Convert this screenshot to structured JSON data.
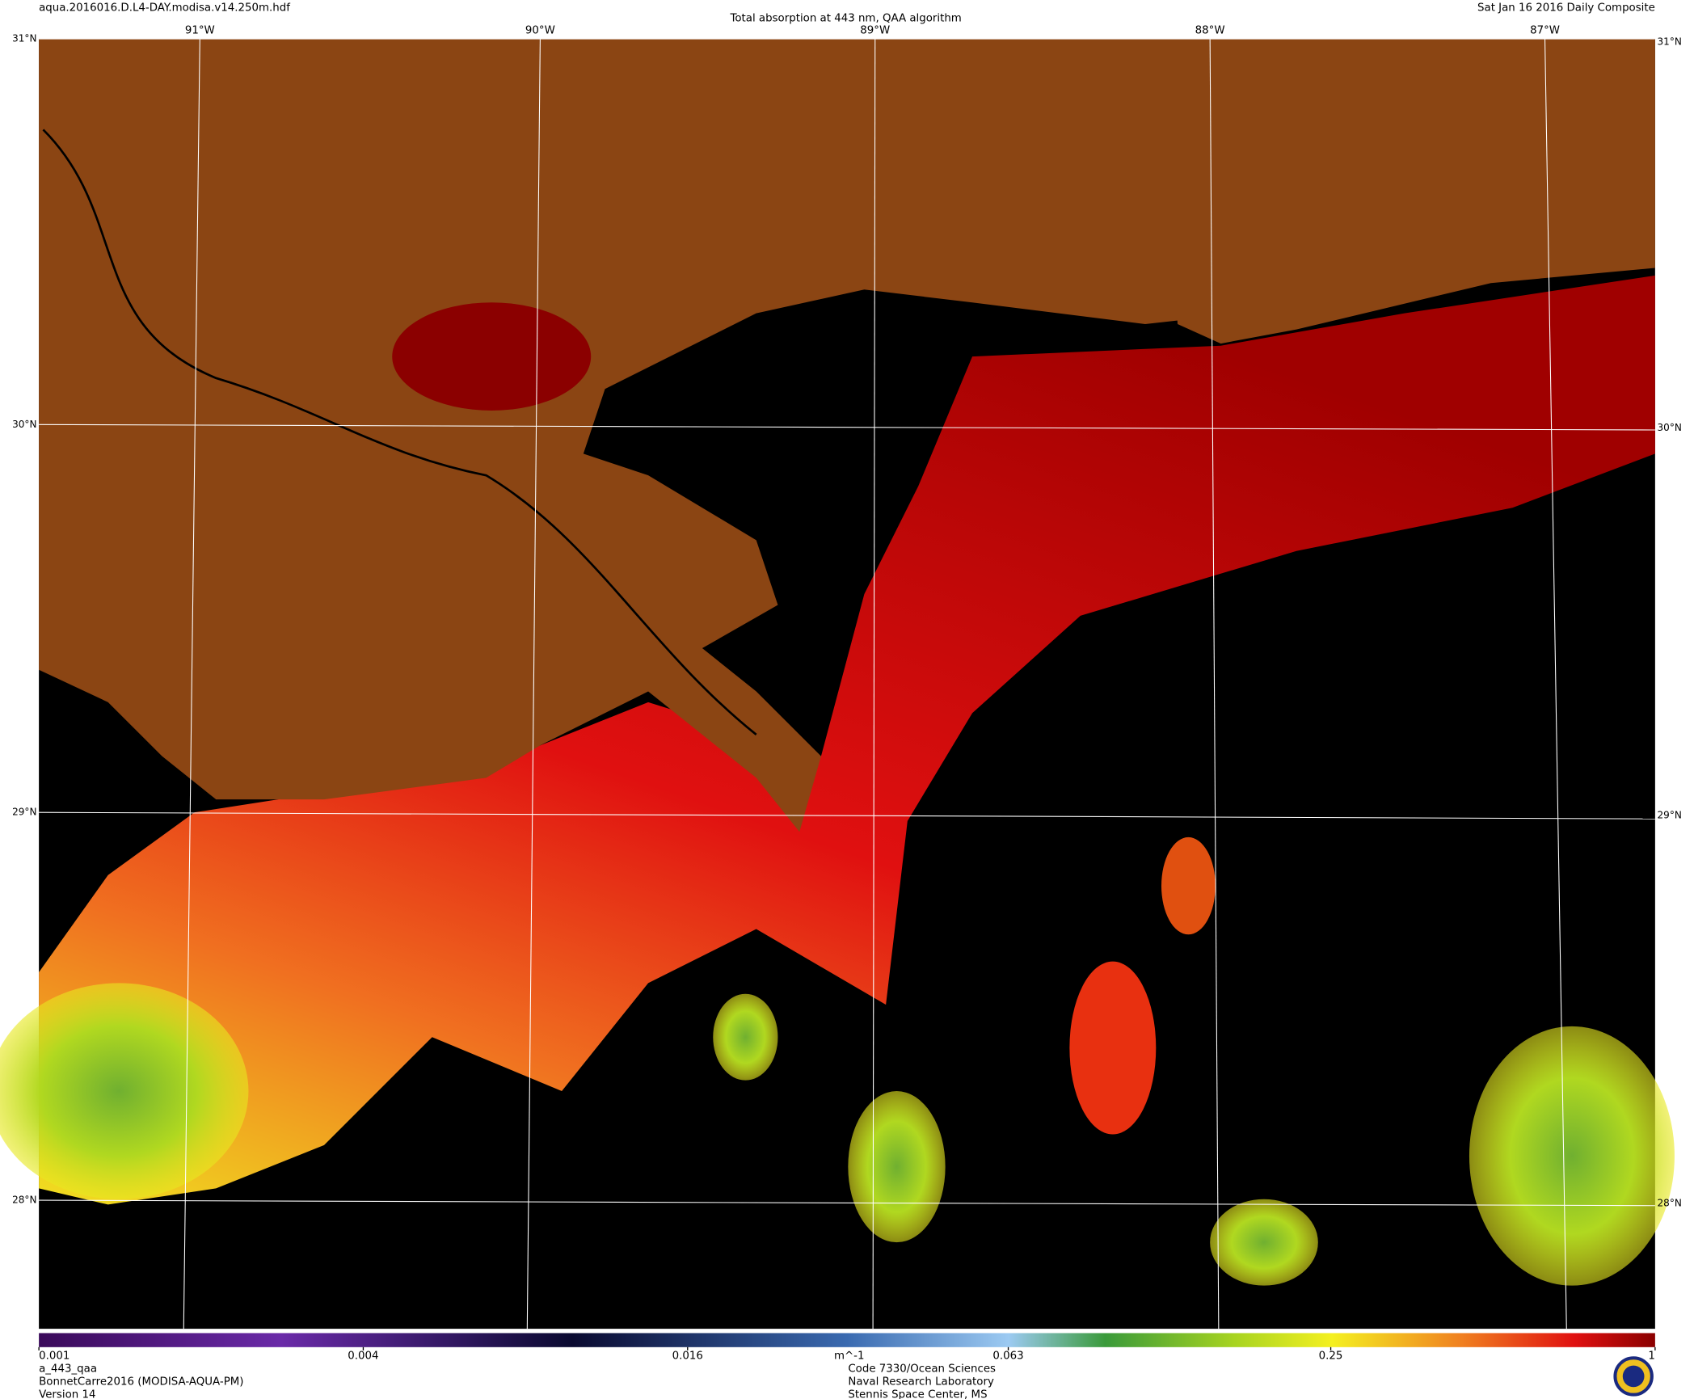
{
  "header": {
    "filename": "aqua.2016016.D.L4-DAY.modisa.v14.250m.hdf",
    "title": "Total absorption at 443 nm, QAA algorithm",
    "date": "Sat Jan 16 2016 Daily Composite"
  },
  "map": {
    "lon_labels": [
      "91°W",
      "90°W",
      "89°W",
      "88°W",
      "87°W"
    ],
    "lat_labels": [
      "31°N",
      "30°N",
      "29°N",
      "28°N"
    ]
  },
  "colorbar": {
    "scale": "log",
    "range": [
      0.001,
      1
    ],
    "ticks": [
      0.001,
      0.004,
      0.016,
      0.063,
      0.25,
      1
    ],
    "unit": "m^-1"
  },
  "footer": {
    "product": "a_443_qaa",
    "dataset": "BonnetCarre2016 (MODISA-AQUA-PM)",
    "version": "Version 14",
    "credits": [
      "Code 7330/Ocean Sciences",
      "Naval Research Laboratory",
      "Stennis Space Center, MS"
    ]
  }
}
